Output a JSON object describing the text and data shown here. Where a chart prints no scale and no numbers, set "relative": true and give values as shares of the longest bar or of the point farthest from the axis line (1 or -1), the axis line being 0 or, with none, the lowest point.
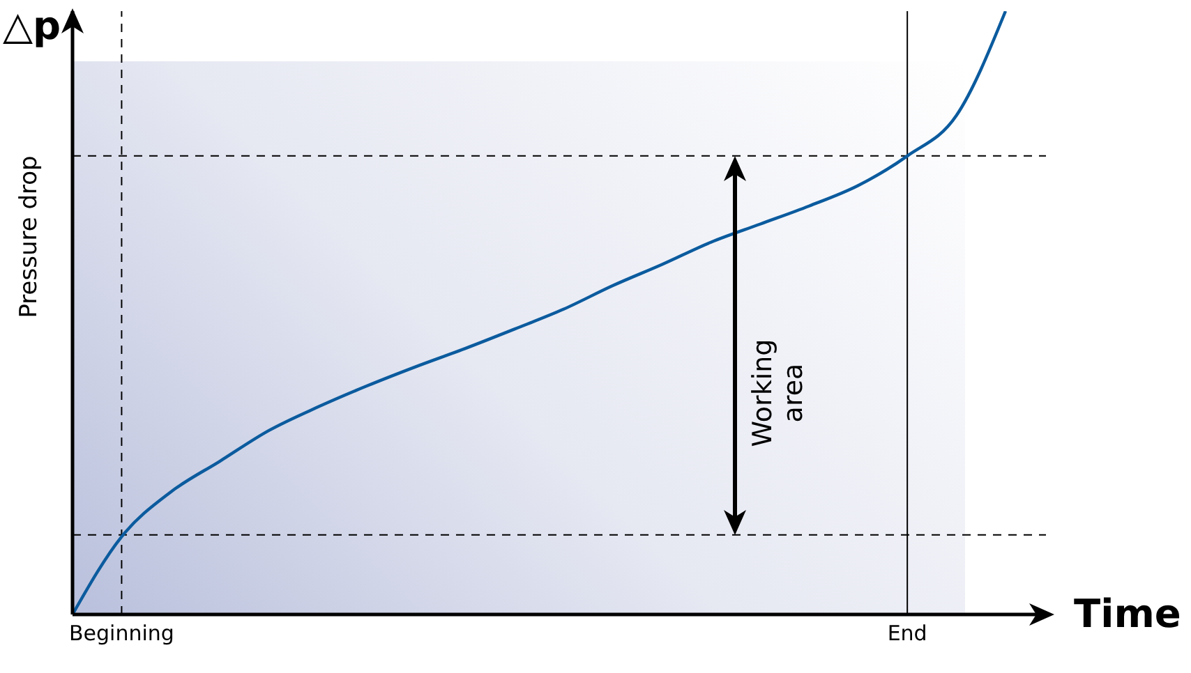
{
  "chart_data": {
    "type": "line",
    "title": "△p",
    "xlabel": "Time",
    "ylabel": "Pressure drop",
    "relative": true,
    "categories": [
      null,
      "Beginning",
      null,
      null,
      null,
      null,
      null,
      null,
      null,
      null,
      null,
      null,
      null,
      null,
      null,
      null,
      null,
      "End",
      null,
      null
    ],
    "series": [
      {
        "color": "#0b5b9e",
        "values": [
          0,
          0.129,
          0.203,
          0.254,
          0.305,
          0.344,
          0.379,
          0.411,
          0.441,
          0.473,
          0.506,
          0.545,
          0.58,
          0.617,
          0.647,
          0.677,
          0.711,
          0.76,
          0.827,
          1
        ]
      }
    ],
    "ref_lines": [
      {
        "axis": "y",
        "value": 0.132,
        "color": "#000000",
        "line_style": "dashed"
      },
      {
        "axis": "y",
        "value": 0.76,
        "color": "#000000",
        "line_style": "dashed"
      },
      {
        "axis": "x",
        "value": "Beginning",
        "color": "#000000",
        "line_style": "dashed"
      },
      {
        "axis": "x",
        "value": "End",
        "color": "#000000",
        "line_style": "solid"
      }
    ],
    "annotations": [
      "Working area"
    ]
  }
}
